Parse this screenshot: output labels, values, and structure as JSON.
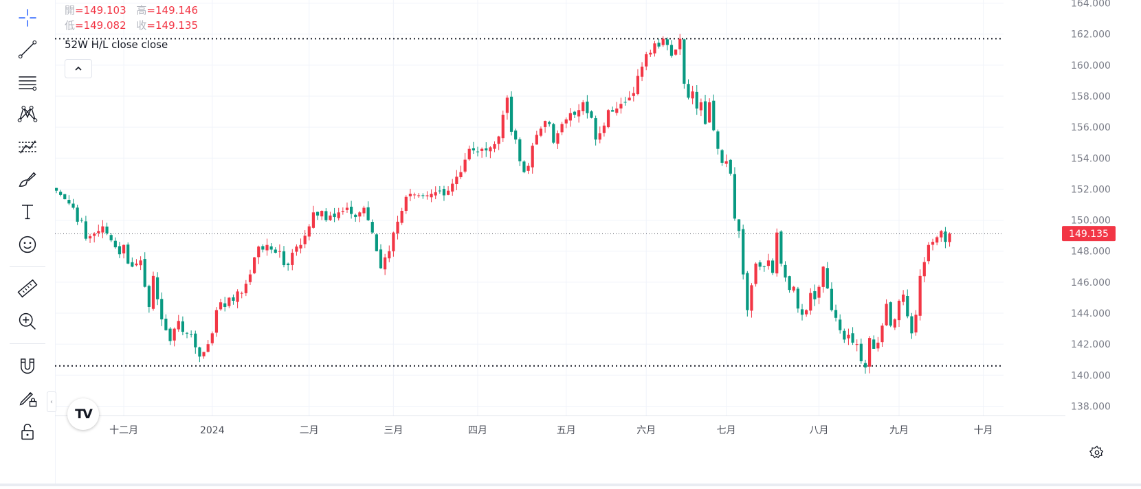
{
  "ohlc": {
    "open_label": "開",
    "open_value": "=149.103",
    "high_label": "高",
    "high_value": "=149.146",
    "low_label": "低",
    "low_value": "=149.082",
    "close_label": "收",
    "close_value": "=149.135"
  },
  "indicator_legend": "52W H/L close close",
  "price_badge": "149.135",
  "colors": {
    "up": "#f23645",
    "down": "#089981",
    "grid": "#f0f3fa",
    "text": "#131722",
    "axis_text": "#787b86"
  },
  "toolbar": [
    "crosshair-icon",
    "trend-line-icon",
    "fib-retracement-icon",
    "pattern-icon",
    "prediction-icon",
    "brush-icon",
    "text-icon",
    "emoji-icon",
    "ruler-icon",
    "zoom-in-icon",
    "magnet-icon",
    "lock-drawing-icon",
    "unlock-icon"
  ],
  "chart_data": {
    "type": "candlestick",
    "y_ticks": [
      "164.000",
      "162.000",
      "160.000",
      "158.000",
      "156.000",
      "154.000",
      "152.000",
      "150.000",
      "148.000",
      "146.000",
      "144.000",
      "142.000",
      "140.000",
      "138.000"
    ],
    "x_ticks": [
      {
        "label": "十二月",
        "index": 16
      },
      {
        "label": "2024",
        "index": 37
      },
      {
        "label": "二月",
        "index": 60
      },
      {
        "label": "三月",
        "index": 80
      },
      {
        "label": "四月",
        "index": 100
      },
      {
        "label": "五月",
        "index": 121
      },
      {
        "label": "六月",
        "index": 140
      },
      {
        "label": "七月",
        "index": 159
      },
      {
        "label": "八月",
        "index": 181
      },
      {
        "label": "九月",
        "index": 200
      },
      {
        "label": "十月",
        "index": 220
      }
    ],
    "ylim": [
      137.4,
      164.2
    ],
    "reference_lines": {
      "high_52w": 161.7,
      "low_52w": 140.6,
      "last": 149.135
    },
    "close_path": [
      [
        0,
        151.9
      ],
      [
        4,
        150.8
      ],
      [
        5,
        149.9
      ],
      [
        6,
        150.0
      ],
      [
        7,
        148.8
      ],
      [
        10,
        149.3
      ],
      [
        11,
        149.6
      ],
      [
        13,
        148.7
      ],
      [
        15,
        147.8
      ],
      [
        16,
        148.4
      ],
      [
        17,
        147.2
      ],
      [
        18,
        147.0
      ],
      [
        20,
        147.4
      ],
      [
        21,
        145.7
      ],
      [
        22,
        144.4
      ],
      [
        23,
        146.4
      ],
      [
        24,
        144.9
      ],
      [
        25,
        143.6
      ],
      [
        26,
        142.9
      ],
      [
        27,
        142.2
      ],
      [
        28,
        143.0
      ],
      [
        29,
        143.5
      ],
      [
        30,
        142.8
      ],
      [
        31,
        142.7
      ],
      [
        32,
        142.6
      ],
      [
        33,
        141.8
      ],
      [
        34,
        141.2
      ],
      [
        35,
        141.5
      ],
      [
        36,
        142.0
      ],
      [
        37,
        142.7
      ],
      [
        38,
        144.2
      ],
      [
        39,
        144.7
      ],
      [
        40,
        144.4
      ],
      [
        41,
        145.0
      ],
      [
        42,
        144.8
      ],
      [
        43,
        145.4
      ],
      [
        44,
        145.3
      ],
      [
        45,
        145.9
      ],
      [
        46,
        146.5
      ],
      [
        47,
        147.6
      ],
      [
        48,
        148.3
      ],
      [
        49,
        148.1
      ],
      [
        50,
        148.4
      ],
      [
        51,
        148.1
      ],
      [
        52,
        147.9
      ],
      [
        53,
        148.0
      ],
      [
        54,
        147.1
      ],
      [
        55,
        147.1
      ],
      [
        56,
        147.9
      ],
      [
        57,
        148.3
      ],
      [
        58,
        148.4
      ],
      [
        59,
        149.0
      ],
      [
        60,
        149.6
      ],
      [
        61,
        150.5
      ],
      [
        62,
        150.3
      ],
      [
        63,
        150.6
      ],
      [
        64,
        150.0
      ],
      [
        65,
        150.3
      ],
      [
        66,
        150.2
      ],
      [
        67,
        150.5
      ],
      [
        68,
        150.6
      ],
      [
        69,
        150.8
      ],
      [
        70,
        150.4
      ],
      [
        71,
        150.2
      ],
      [
        72,
        150.5
      ],
      [
        73,
        150.8
      ],
      [
        75,
        149.2
      ],
      [
        76,
        148.0
      ],
      [
        77,
        146.9
      ],
      [
        78,
        147.6
      ],
      [
        79,
        148.0
      ],
      [
        80,
        149.2
      ],
      [
        81,
        149.9
      ],
      [
        82,
        150.6
      ],
      [
        83,
        151.5
      ],
      [
        84,
        151.7
      ],
      [
        86,
        151.6
      ],
      [
        88,
        151.6
      ],
      [
        90,
        151.8
      ],
      [
        91,
        151.9
      ],
      [
        92,
        151.6
      ],
      [
        93,
        151.9
      ],
      [
        95,
        152.8
      ],
      [
        96,
        153.1
      ],
      [
        97,
        153.9
      ],
      [
        98,
        154.6
      ],
      [
        100,
        154.4
      ],
      [
        101,
        154.6
      ],
      [
        102,
        154.5
      ],
      [
        103,
        154.7
      ],
      [
        104,
        154.9
      ],
      [
        105,
        155.4
      ],
      [
        106,
        156.8
      ],
      [
        107,
        157.9
      ],
      [
        108,
        155.7
      ],
      [
        109,
        155.2
      ],
      [
        110,
        153.8
      ],
      [
        111,
        153.1
      ],
      [
        112,
        153.5
      ],
      [
        113,
        154.8
      ],
      [
        114,
        155.5
      ],
      [
        115,
        155.9
      ],
      [
        116,
        156.4
      ],
      [
        117,
        156.2
      ],
      [
        118,
        155.0
      ],
      [
        119,
        155.6
      ],
      [
        120,
        156.2
      ],
      [
        121,
        156.5
      ],
      [
        122,
        156.9
      ],
      [
        123,
        156.8
      ],
      [
        124,
        157.1
      ],
      [
        125,
        157.6
      ],
      [
        126,
        156.9
      ],
      [
        127,
        156.6
      ],
      [
        128,
        155.2
      ],
      [
        129,
        155.6
      ],
      [
        130,
        156.1
      ],
      [
        131,
        157.1
      ],
      [
        132,
        157.0
      ],
      [
        133,
        157.2
      ],
      [
        134,
        157.5
      ],
      [
        135,
        157.6
      ],
      [
        136,
        157.9
      ],
      [
        137,
        158.2
      ],
      [
        138,
        159.3
      ],
      [
        139,
        159.9
      ],
      [
        140,
        160.7
      ],
      [
        141,
        160.8
      ],
      [
        142,
        161.4
      ],
      [
        143,
        161.2
      ],
      [
        144,
        161.7
      ],
      [
        145,
        161.3
      ],
      [
        146,
        160.6
      ],
      [
        147,
        161.0
      ],
      [
        148,
        161.7
      ],
      [
        149,
        158.8
      ],
      [
        150,
        157.9
      ],
      [
        151,
        158.3
      ],
      [
        152,
        157.2
      ],
      [
        153,
        157.6
      ],
      [
        154,
        156.2
      ],
      [
        155,
        157.6
      ],
      [
        156,
        155.8
      ],
      [
        157,
        154.6
      ],
      [
        158,
        153.7
      ],
      [
        159,
        153.8
      ],
      [
        160,
        153.0
      ],
      [
        161,
        150.1
      ],
      [
        162,
        149.3
      ],
      [
        163,
        146.5
      ],
      [
        164,
        144.2
      ],
      [
        165,
        145.8
      ],
      [
        166,
        147.2
      ],
      [
        167,
        147.0
      ],
      [
        168,
        147.0
      ],
      [
        169,
        147.4
      ],
      [
        170,
        146.6
      ],
      [
        171,
        149.2
      ],
      [
        172,
        147.2
      ],
      [
        173,
        146.3
      ],
      [
        174,
        145.5
      ],
      [
        175,
        145.7
      ],
      [
        176,
        144.3
      ],
      [
        177,
        143.9
      ],
      [
        178,
        144.2
      ],
      [
        179,
        145.3
      ],
      [
        180,
        144.9
      ],
      [
        181,
        145.7
      ],
      [
        182,
        147.0
      ],
      [
        183,
        145.6
      ],
      [
        184,
        144.2
      ],
      [
        185,
        143.7
      ],
      [
        186,
        142.9
      ],
      [
        187,
        142.3
      ],
      [
        188,
        142.6
      ],
      [
        189,
        142.1
      ],
      [
        190,
        142.0
      ],
      [
        191,
        140.9
      ],
      [
        192,
        140.5
      ],
      [
        193,
        142.4
      ],
      [
        194,
        141.7
      ],
      [
        195,
        142.1
      ],
      [
        196,
        143.2
      ],
      [
        197,
        144.6
      ],
      [
        198,
        143.2
      ],
      [
        199,
        143.6
      ],
      [
        200,
        144.8
      ],
      [
        201,
        145.2
      ],
      [
        202,
        143.8
      ],
      [
        203,
        142.7
      ],
      [
        204,
        143.9
      ],
      [
        205,
        146.4
      ],
      [
        206,
        147.3
      ],
      [
        207,
        148.4
      ],
      [
        208,
        148.6
      ],
      [
        209,
        148.9
      ],
      [
        210,
        149.3
      ],
      [
        211,
        148.6
      ],
      [
        212,
        149.135
      ]
    ]
  }
}
